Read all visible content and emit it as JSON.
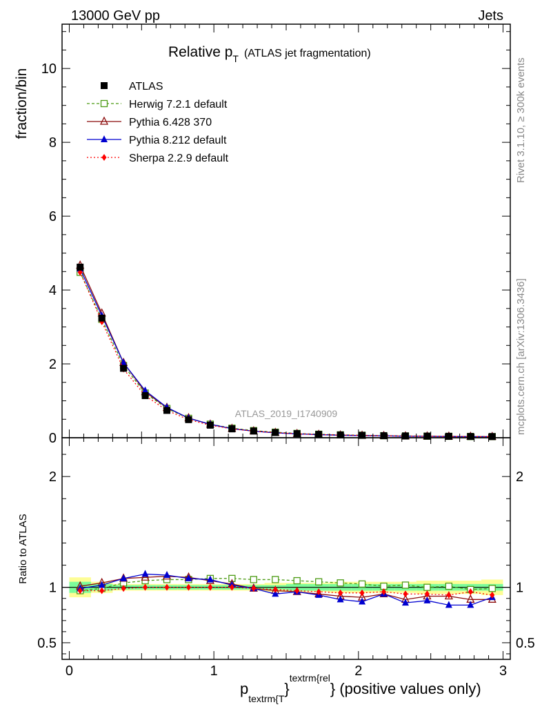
{
  "header": {
    "left": "13000 GeV pp",
    "right": "Jets"
  },
  "title": {
    "main": "Relative p",
    "sub": "T",
    "note": "(ATLAS jet fragmentation)"
  },
  "side_text": {
    "rivet": "Rivet 3.1.10, ≥ 300k events",
    "site": "mcplots.cern.ch [arXiv:1306.3436]"
  },
  "watermark": "ATLAS_2019_I1740909",
  "ylabel_main": "fraction/bin",
  "ylabel_ratio": "Ratio to ATLAS",
  "xlabel": {
    "p": "p",
    "sub": "textrm{T",
    "sup": "textrm{rel",
    "brace": "}",
    "rest": "} (positive values only)"
  },
  "chart_data": {
    "type": "line",
    "x": [
      0.075,
      0.225,
      0.375,
      0.525,
      0.675,
      0.825,
      0.975,
      1.125,
      1.275,
      1.425,
      1.575,
      1.725,
      1.875,
      2.025,
      2.175,
      2.325,
      2.475,
      2.625,
      2.775,
      2.925
    ],
    "xlim": [
      -0.05,
      3.05
    ],
    "main": {
      "ylim": [
        0,
        11.2
      ],
      "yticks": [
        0,
        2,
        4,
        6,
        8,
        10
      ],
      "yticklabels": [
        "0",
        "2",
        "4",
        "6",
        "8",
        "10"
      ]
    },
    "ratio": {
      "ylim": [
        0.35,
        2.35
      ],
      "yticks": [
        0.5,
        1,
        2
      ],
      "yticklabels": [
        "0.5",
        "1",
        "2"
      ]
    },
    "xticks": [
      0,
      1,
      2,
      3
    ],
    "xticklabels": [
      "0",
      "1",
      "2",
      "3"
    ],
    "series": [
      {
        "name": "ATLAS",
        "color": "#000000",
        "marker": "square",
        "values": [
          4.62,
          3.24,
          1.88,
          1.14,
          0.74,
          0.49,
          0.34,
          0.24,
          0.18,
          0.14,
          0.11,
          0.09,
          0.075,
          0.065,
          0.055,
          0.048,
          0.043,
          0.038,
          0.034,
          0.031
        ]
      },
      {
        "name": "Herwig 7.2.1 default",
        "color": "#4b9a12",
        "marker": "open-square",
        "dash": "4,3",
        "ratio": [
          0.97,
          0.99,
          1.04,
          1.06,
          1.07,
          1.07,
          1.08,
          1.08,
          1.07,
          1.07,
          1.06,
          1.05,
          1.04,
          1.03,
          1.01,
          1.02,
          1.0,
          1.01,
          0.98,
          0.99
        ]
      },
      {
        "name": "Pythia 6.428 370",
        "color": "#8b0a0a",
        "marker": "open-triangle",
        "dash": "",
        "ratio": [
          1.01,
          1.04,
          1.08,
          1.09,
          1.1,
          1.09,
          1.06,
          1.03,
          0.99,
          0.97,
          0.96,
          0.94,
          0.92,
          0.91,
          0.94,
          0.89,
          0.92,
          0.92,
          0.89,
          0.89
        ]
      },
      {
        "name": "Pythia 8.212 default",
        "color": "#0000d0",
        "marker": "triangle",
        "dash": "",
        "ratio": [
          0.99,
          1.02,
          1.08,
          1.12,
          1.11,
          1.08,
          1.07,
          1.02,
          0.99,
          0.94,
          0.96,
          0.93,
          0.89,
          0.87,
          0.94,
          0.86,
          0.88,
          0.84,
          0.84,
          0.91
        ]
      },
      {
        "name": "Sherpa 2.2.9 default",
        "color": "#ff0000",
        "marker": "diamond",
        "dash": "2,3",
        "ratio": [
          0.97,
          0.97,
          0.99,
          1.0,
          1.0,
          1.0,
          1.0,
          1.0,
          0.99,
          0.98,
          0.97,
          0.96,
          0.95,
          0.95,
          0.96,
          0.94,
          0.94,
          0.93,
          0.96,
          0.93
        ]
      }
    ],
    "legend_position": "top-left",
    "band": {
      "inner": [
        0.05,
        0.03,
        0.02,
        0.02,
        0.02,
        0.02,
        0.02,
        0.02,
        0.02,
        0.02,
        0.03,
        0.03,
        0.03,
        0.03,
        0.03,
        0.03,
        0.03,
        0.03,
        0.03,
        0.03
      ],
      "outer": [
        0.09,
        0.05,
        0.03,
        0.03,
        0.03,
        0.03,
        0.03,
        0.03,
        0.03,
        0.04,
        0.04,
        0.04,
        0.05,
        0.05,
        0.05,
        0.05,
        0.06,
        0.06,
        0.06,
        0.07
      ],
      "inner_color": "#7cfc9a",
      "outer_color": "#fdfd96"
    }
  }
}
